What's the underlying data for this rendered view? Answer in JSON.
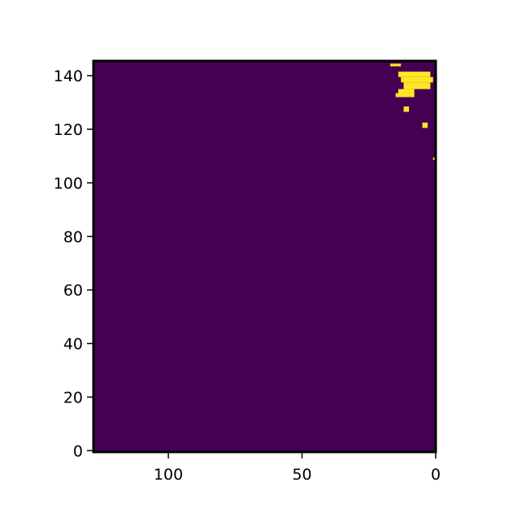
{
  "chart_data": {
    "type": "heatmap",
    "title": "",
    "xlabel": "",
    "ylabel": "",
    "x_inverted": true,
    "xlim": [
      128,
      0
    ],
    "ylim": [
      -0.5,
      145.5
    ],
    "x_ticks": [
      100,
      50,
      0
    ],
    "y_ticks": [
      0,
      20,
      40,
      60,
      80,
      100,
      120,
      140
    ],
    "grid": false,
    "legend": "none",
    "colormap": "viridis",
    "colors": {
      "background_value_0": "#440154",
      "highlight_value_1": "#fde725"
    },
    "highlighted_cells": [
      {
        "x0": 17,
        "x1": 13,
        "y0": 143.5,
        "y1": 144.5
      },
      {
        "x0": 14,
        "x1": 2,
        "y0": 139.5,
        "y1": 141.5
      },
      {
        "x0": 13,
        "x1": 1,
        "y0": 137.5,
        "y1": 139.5
      },
      {
        "x0": 12,
        "x1": 2,
        "y0": 135,
        "y1": 137.5
      },
      {
        "x0": 14,
        "x1": 8,
        "y0": 133.5,
        "y1": 135
      },
      {
        "x0": 15,
        "x1": 8,
        "y0": 132,
        "y1": 133.5
      },
      {
        "x0": 12,
        "x1": 10,
        "y0": 126.5,
        "y1": 128.5
      },
      {
        "x0": 5,
        "x1": 3,
        "y0": 120.5,
        "y1": 122.5
      },
      {
        "x0": 1,
        "x1": 0,
        "y0": 108.5,
        "y1": 109.5
      }
    ]
  }
}
